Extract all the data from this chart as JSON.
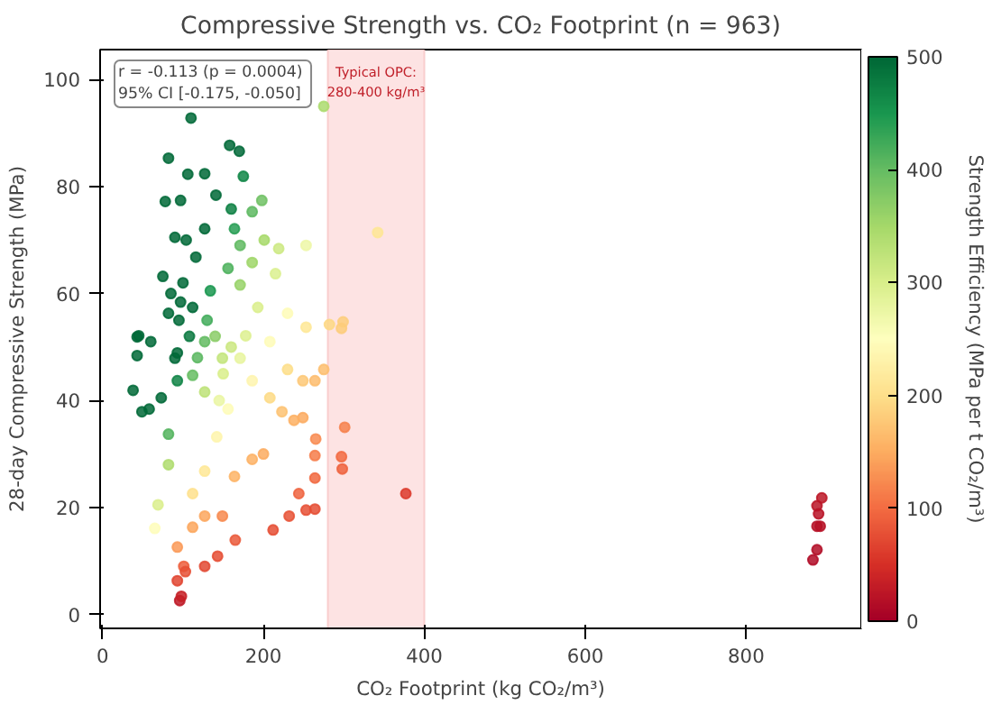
{
  "chart_data": {
    "type": "scatter",
    "title": "Compressive Strength vs. CO₂ Footprint (n = 963)",
    "xlabel": "CO₂ Footprint (kg CO₂/m³)",
    "ylabel": "28-day Compressive Strength (MPa)",
    "clabel": "Strength Efficiency (MPa per t CO₂/m³)",
    "x": [
      275,
      110,
      342,
      377,
      301,
      297,
      298,
      299,
      297,
      894,
      888,
      890,
      888,
      892,
      888,
      883,
      38,
      49,
      58,
      43,
      43,
      60,
      73,
      82,
      82,
      69,
      65,
      93,
      93,
      96,
      98,
      101,
      103,
      127,
      143,
      165,
      212,
      232,
      253,
      264,
      244,
      264,
      264,
      265,
      249,
      238,
      223,
      208,
      249,
      264,
      275,
      230,
      186,
      200,
      164,
      149,
      127,
      112,
      112,
      127,
      142,
      156,
      127,
      112,
      149,
      171,
      186,
      93,
      90,
      158,
      170,
      82,
      106,
      127,
      175,
      78,
      97,
      141,
      160,
      186,
      198,
      127,
      104,
      90,
      116,
      164,
      171,
      201,
      219,
      253,
      156,
      186,
      215,
      75,
      97,
      82,
      112,
      134,
      171,
      193,
      230,
      45,
      253,
      282,
      127,
      178,
      208,
      93,
      100,
      95,
      108,
      85,
      118,
      130,
      140,
      150,
      145,
      160
    ],
    "values": [
      95,
      92.8,
      71.4,
      22.6,
      35,
      29.5,
      27.2,
      54.7,
      53.5,
      21.8,
      20.3,
      18.8,
      16.5,
      16.5,
      12.1,
      10.2,
      41.9,
      37.9,
      38.4,
      51.9,
      48.4,
      51,
      40.5,
      33.7,
      28,
      20.5,
      16.1,
      12.6,
      6.3,
      2.6,
      3.4,
      9,
      8,
      9,
      10.9,
      13.9,
      15.8,
      18.4,
      19.5,
      19.7,
      22.6,
      25.5,
      29.7,
      32.8,
      36.8,
      36.3,
      37.9,
      40.5,
      43.7,
      43.7,
      45.8,
      45.8,
      29,
      30,
      25.8,
      18.4,
      18.4,
      16.3,
      22.6,
      26.8,
      33.2,
      38.4,
      41.6,
      44.7,
      47.9,
      47.9,
      43.7,
      43.7,
      47.9,
      87.7,
      86.6,
      85.3,
      82.3,
      82.4,
      81.9,
      77.2,
      77.4,
      78.4,
      75.8,
      75.3,
      77.4,
      72.1,
      70,
      70.5,
      66.8,
      72.1,
      69,
      70,
      68.4,
      69,
      64.7,
      65.8,
      63.7,
      63.2,
      58.4,
      56.3,
      57.4,
      60.5,
      61.6,
      57.4,
      56.3,
      52.1,
      53.7,
      54.2,
      51,
      52.1,
      51,
      48.9,
      62,
      55,
      52,
      60,
      48,
      55,
      52,
      45,
      40,
      50
    ],
    "cvalues": [
      345,
      500,
      209,
      60,
      116,
      99,
      91,
      183,
      180,
      24,
      23,
      21,
      19,
      18,
      14,
      12,
      500,
      500,
      500,
      500,
      500,
      500,
      500,
      411,
      341,
      297,
      248,
      135,
      68,
      27,
      35,
      89,
      78,
      71,
      76,
      84,
      75,
      79,
      77,
      75,
      93,
      97,
      113,
      124,
      148,
      153,
      170,
      195,
      176,
      166,
      167,
      199,
      156,
      150,
      157,
      123,
      145,
      146,
      202,
      211,
      234,
      246,
      328,
      399,
      321,
      280,
      235,
      470,
      500,
      500,
      500,
      500,
      500,
      500,
      468,
      500,
      500,
      500,
      474,
      405,
      391,
      500,
      500,
      500,
      500,
      440,
      404,
      348,
      312,
      273,
      415,
      354,
      296,
      500,
      500,
      500,
      500,
      451,
      360,
      297,
      245,
      500,
      212,
      192,
      402,
      293,
      245,
      500,
      500,
      500,
      481,
      500,
      407,
      423,
      371,
      300,
      276,
      313
    ],
    "marker": "circle",
    "xlim": [
      -3,
      943
    ],
    "ylim": [
      -2.6,
      105.6
    ],
    "xticks": [
      0,
      200,
      400,
      600,
      800
    ],
    "yticks": [
      0,
      20,
      40,
      60,
      80,
      100
    ],
    "clim": [
      0,
      500
    ],
    "cticks": [
      0,
      100,
      200,
      300,
      400,
      500
    ],
    "grid": false,
    "bands": [
      {
        "axis": "x",
        "from": 280,
        "to": 400,
        "label": "Typical OPC:\n280-400 kg/m³",
        "color": "#fde3e3"
      }
    ],
    "annotations": [
      "r = -0.113  (p = 0.0004)\n95% CI [-0.175, -0.050]"
    ]
  }
}
